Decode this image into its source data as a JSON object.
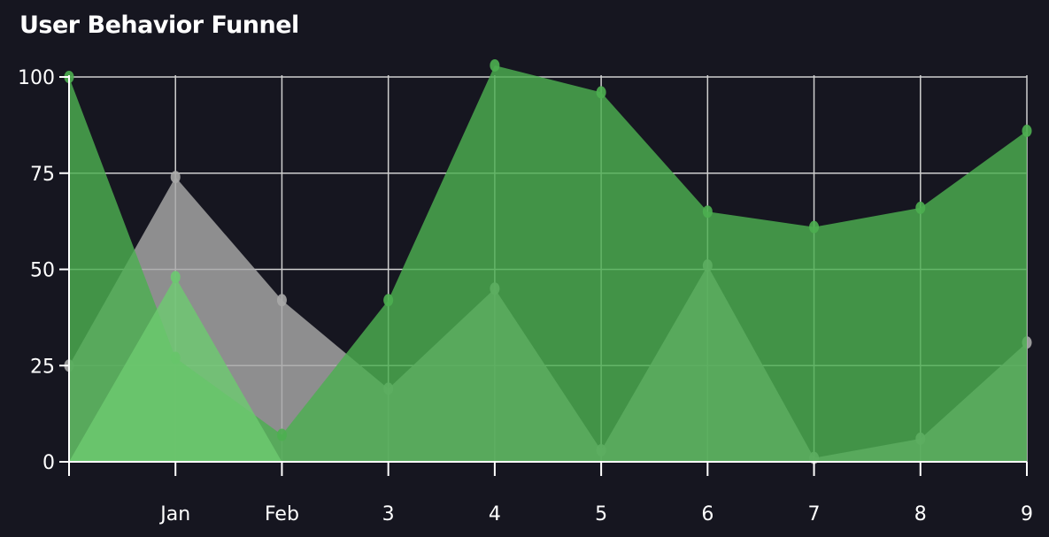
{
  "chart_data": {
    "type": "area",
    "title": "User Behavior Funnel",
    "xlabel": "",
    "ylabel": "",
    "categories": [
      "",
      "Jan",
      "Feb",
      "3",
      "4",
      "5",
      "6",
      "7",
      "8",
      "9"
    ],
    "yticks": [
      0,
      25,
      50,
      75,
      100
    ],
    "ylim": [
      0,
      100
    ],
    "grid": true,
    "legend": "none",
    "series": [
      {
        "values": [
          25,
          74,
          42,
          19,
          45,
          3,
          51,
          1,
          6,
          31
        ],
        "color": "#a8a8a8"
      },
      {
        "values": [
          100,
          27,
          7,
          42,
          103,
          96,
          65,
          61,
          66,
          86
        ],
        "color": "#4caf50"
      },
      {
        "values": [
          0,
          48,
          0,
          0,
          0,
          0,
          0,
          0,
          0,
          0
        ],
        "color": "#6cc970"
      }
    ]
  }
}
